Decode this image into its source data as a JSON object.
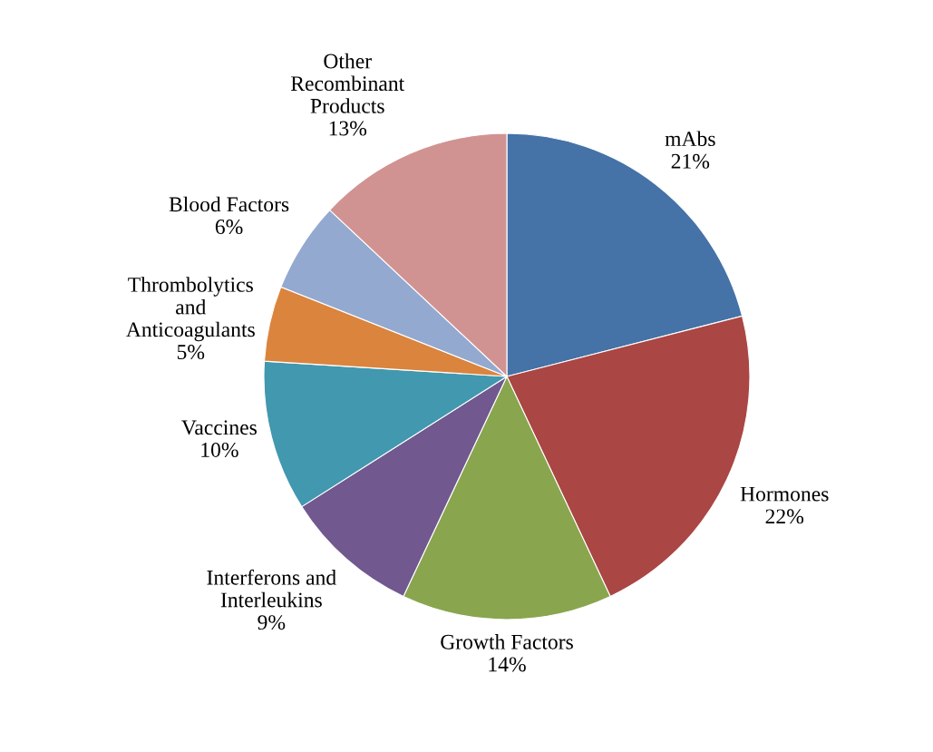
{
  "chart_data": {
    "type": "pie",
    "categories": [
      "mAbs",
      "Hormones",
      "Growth Factors",
      "Interferons and\nInterleukins",
      "Vaccines",
      "Thrombolytics\nand\nAnticoagulants",
      "Blood Factors",
      "Other\nRecombinant\nProducts"
    ],
    "values": [
      21,
      22,
      14,
      9,
      10,
      5,
      6,
      13
    ],
    "value_labels": [
      "21%",
      "22%",
      "14%",
      "9%",
      "10%",
      "5%",
      "6%",
      "13%"
    ],
    "colors": [
      "#4572a7",
      "#aa4643",
      "#89a54e",
      "#71588f",
      "#4198af",
      "#db843d",
      "#93a9cf",
      "#d19392"
    ],
    "legend": false
  }
}
